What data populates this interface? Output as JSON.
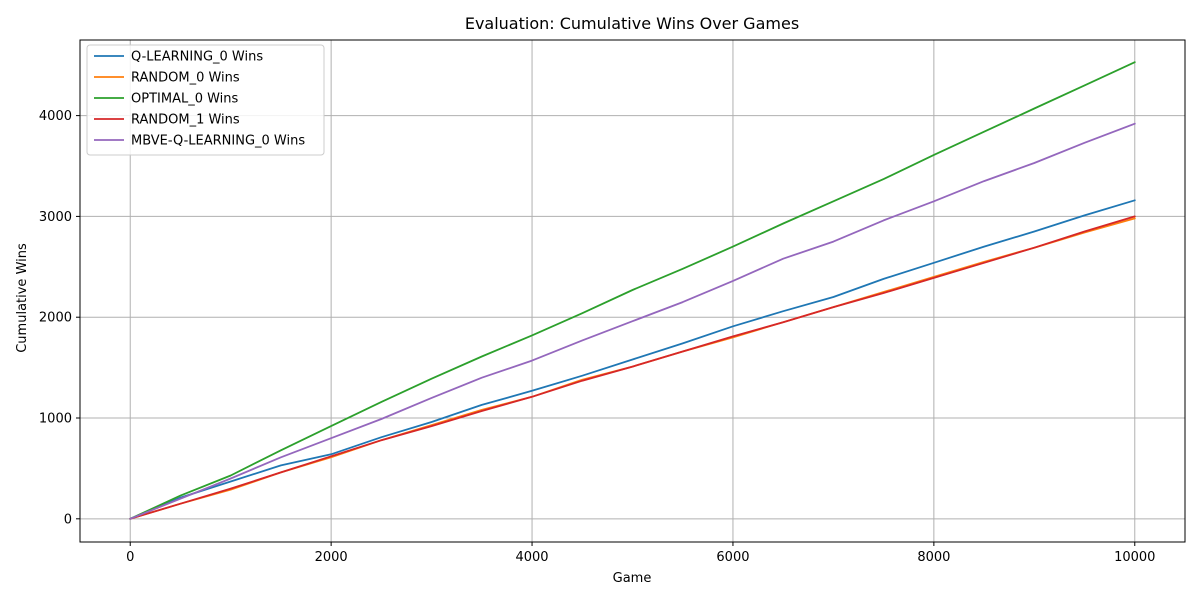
{
  "chart_data": {
    "type": "line",
    "title": "Evaluation: Cumulative Wins Over Games",
    "xlabel": "Game",
    "ylabel": "Cumulative Wins",
    "xlim": [
      -500,
      10500
    ],
    "ylim": [
      -230,
      4750
    ],
    "xticks": [
      0,
      2000,
      4000,
      6000,
      8000,
      10000
    ],
    "yticks": [
      0,
      1000,
      2000,
      3000,
      4000
    ],
    "grid": true,
    "legend_position": "upper-left",
    "series": [
      {
        "name": "Q-LEARNING_0 Wins",
        "color": "#1f77b4",
        "x": [
          0,
          500,
          1000,
          1500,
          2000,
          2500,
          3000,
          3500,
          4000,
          4500,
          5000,
          5500,
          6000,
          6500,
          7000,
          7500,
          8000,
          8500,
          9000,
          9500,
          10000
        ],
        "y": [
          0,
          210,
          370,
          530,
          640,
          810,
          960,
          1130,
          1270,
          1420,
          1580,
          1740,
          1910,
          2060,
          2200,
          2380,
          2540,
          2700,
          2850,
          3010,
          3160
        ]
      },
      {
        "name": "RANDOM_0 Wins",
        "color": "#ff7f0e",
        "x": [
          0,
          500,
          1000,
          1500,
          2000,
          2500,
          3000,
          3500,
          4000,
          4500,
          5000,
          5500,
          6000,
          6500,
          7000,
          7500,
          8000,
          8500,
          9000,
          9500,
          10000
        ],
        "y": [
          0,
          150,
          290,
          460,
          610,
          780,
          930,
          1080,
          1210,
          1380,
          1510,
          1660,
          1800,
          1950,
          2100,
          2250,
          2400,
          2550,
          2690,
          2840,
          2980
        ]
      },
      {
        "name": "OPTIMAL_0 Wins",
        "color": "#2ca02c",
        "x": [
          0,
          500,
          1000,
          1500,
          2000,
          2500,
          3000,
          3500,
          4000,
          4500,
          5000,
          5500,
          6000,
          6500,
          7000,
          7500,
          8000,
          8500,
          9000,
          9500,
          10000
        ],
        "y": [
          0,
          230,
          430,
          680,
          920,
          1160,
          1390,
          1610,
          1820,
          2040,
          2270,
          2480,
          2700,
          2930,
          3150,
          3370,
          3610,
          3840,
          4070,
          4300,
          4530
        ]
      },
      {
        "name": "RANDOM_1 Wins",
        "color": "#d62728",
        "x": [
          0,
          500,
          1000,
          1500,
          2000,
          2500,
          3000,
          3500,
          4000,
          4500,
          5000,
          5500,
          6000,
          6500,
          7000,
          7500,
          8000,
          8500,
          9000,
          9500,
          10000
        ],
        "y": [
          0,
          150,
          300,
          460,
          620,
          780,
          920,
          1070,
          1210,
          1370,
          1510,
          1660,
          1810,
          1950,
          2100,
          2240,
          2390,
          2540,
          2690,
          2850,
          3000
        ]
      },
      {
        "name": "MBVE-Q-LEARNING_0 Wins",
        "color": "#9467bd",
        "x": [
          0,
          500,
          1000,
          1500,
          2000,
          2500,
          3000,
          3500,
          4000,
          4500,
          5000,
          5500,
          6000,
          6500,
          7000,
          7500,
          8000,
          8500,
          9000,
          9500,
          10000
        ],
        "y": [
          0,
          200,
          400,
          610,
          800,
          990,
          1200,
          1400,
          1570,
          1770,
          1960,
          2150,
          2360,
          2580,
          2750,
          2960,
          3150,
          3350,
          3530,
          3730,
          3920
        ]
      }
    ]
  }
}
